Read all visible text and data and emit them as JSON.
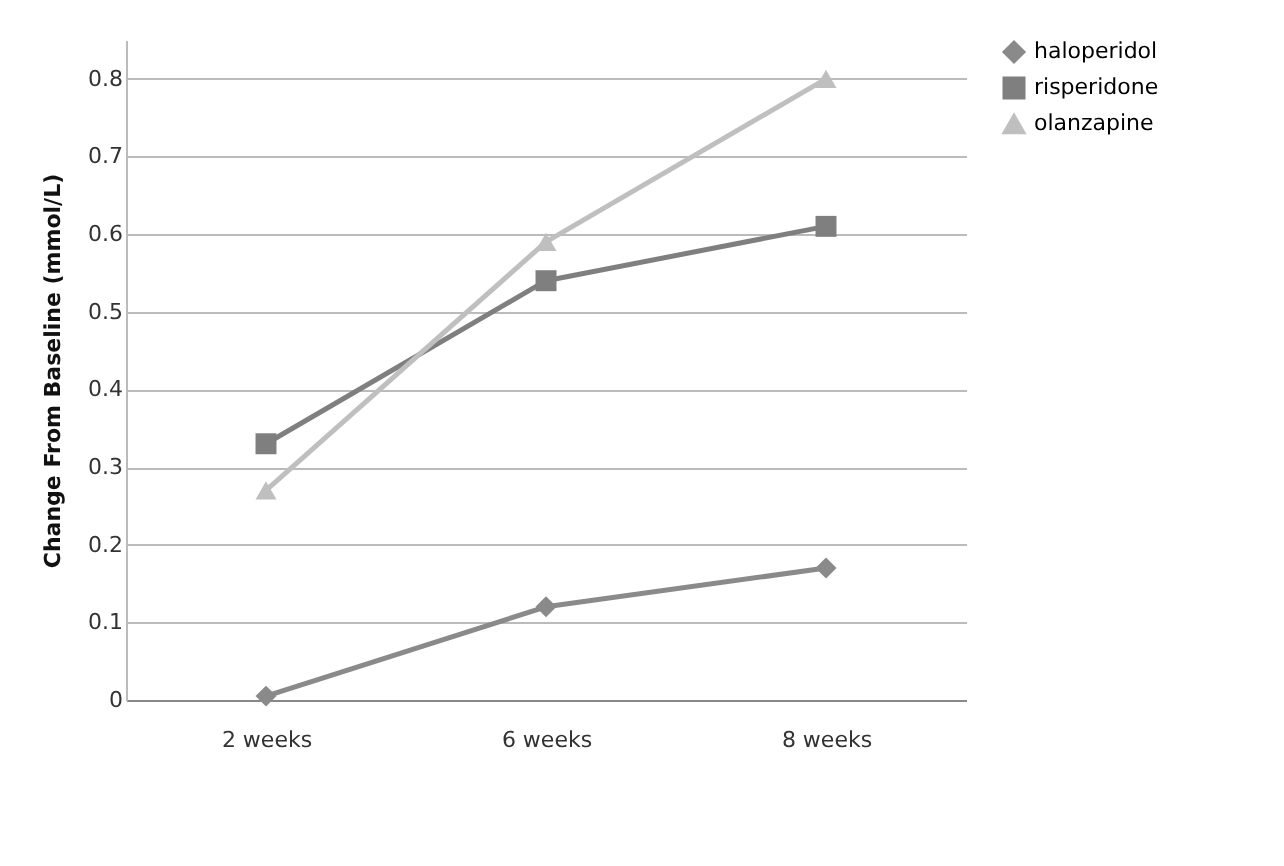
{
  "chart_data": {
    "type": "line",
    "ylabel": "Change From Baseline (mmol/L)",
    "categories": [
      "2 weeks",
      "6 weeks",
      "8 weeks"
    ],
    "series": [
      {
        "name": "haloperidol",
        "color": "#8a8a8a",
        "marker": "diamond",
        "values": [
          0.005,
          0.12,
          0.17
        ]
      },
      {
        "name": "risperidone",
        "color": "#7f7f7f",
        "marker": "square",
        "values": [
          0.33,
          0.54,
          0.61
        ]
      },
      {
        "name": "olanzapine",
        "color": "#bfbfbf",
        "marker": "triangle",
        "values": [
          0.27,
          0.59,
          0.8
        ]
      }
    ],
    "ylim": [
      0,
      0.85
    ],
    "yticks": [
      0,
      0.1,
      0.2,
      0.3,
      0.4,
      0.5,
      0.6,
      0.7,
      0.8
    ],
    "grid": "y",
    "legend": "right"
  }
}
